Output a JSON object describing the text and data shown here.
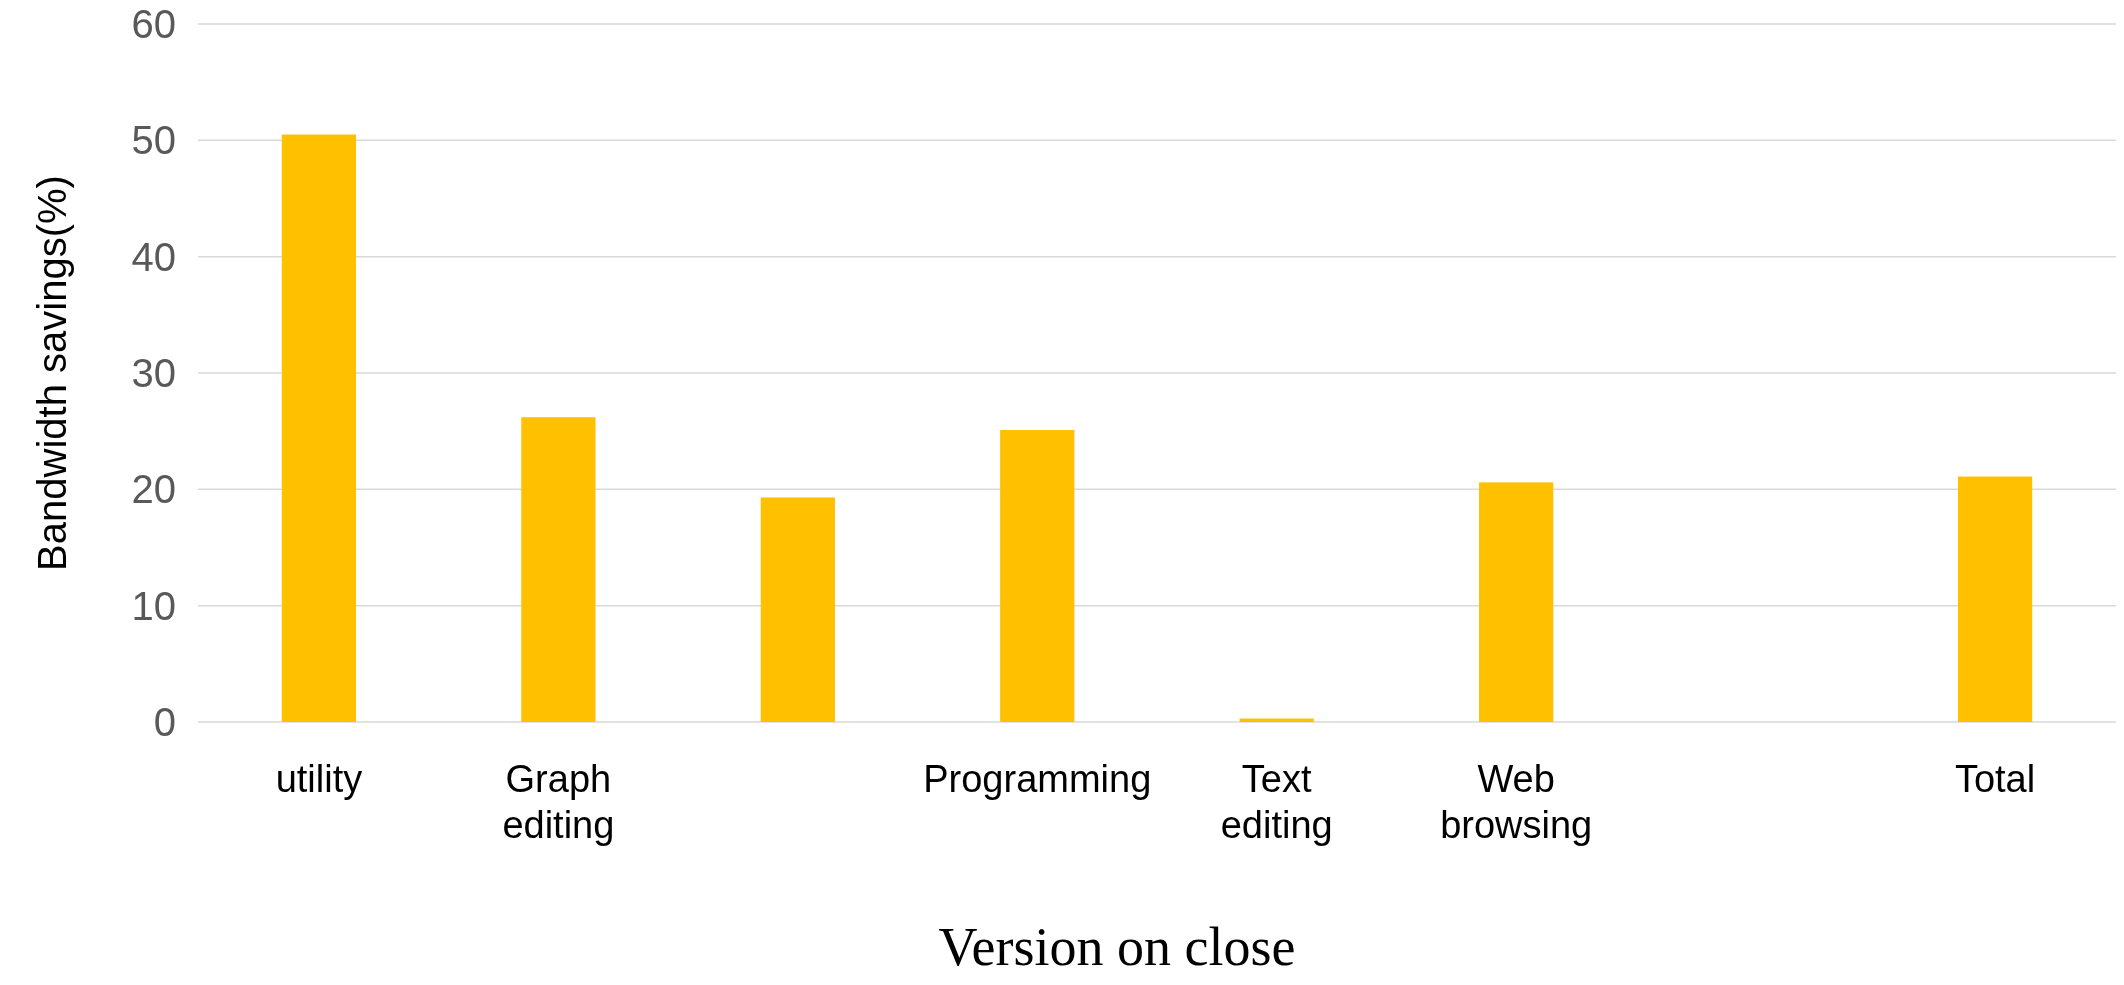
{
  "chart_data": {
    "type": "bar",
    "xlabel": "Version on close",
    "ylabel": "Bandwidth savings(%)",
    "categories": [
      "utility",
      "Graph editing",
      null,
      "Programming",
      "Text editing",
      "Web browsing",
      null,
      "Total"
    ],
    "values": [
      50.5,
      26.2,
      19.3,
      25.1,
      0.3,
      20.6,
      null,
      21.1
    ],
    "color": "#ffc000",
    "ylim": [
      0,
      60
    ],
    "yticks": [
      0,
      10,
      20,
      30,
      40,
      50,
      60
    ],
    "grid": "y"
  }
}
